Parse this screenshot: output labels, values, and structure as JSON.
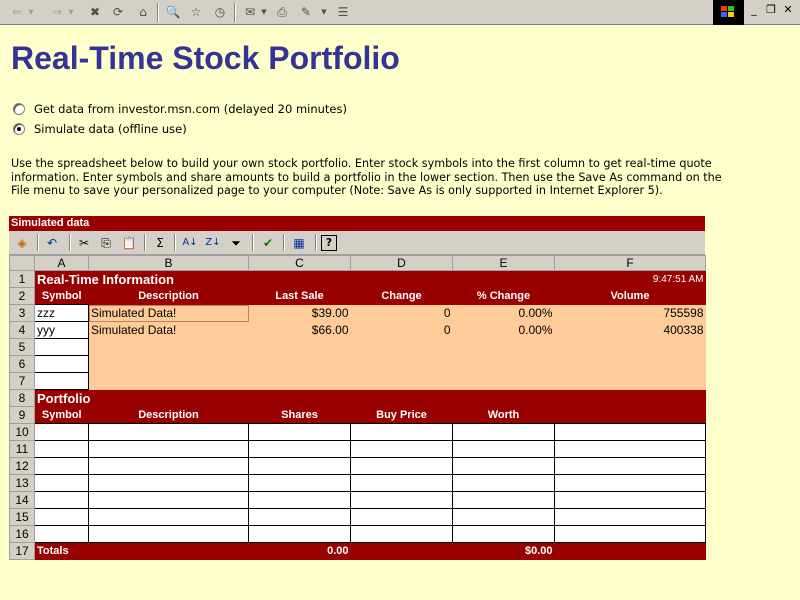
{
  "page": {
    "title": "Real-Time Stock Portfolio",
    "options": [
      {
        "label": "Get data from investor.msn.com (delayed 20 minutes)",
        "checked": false
      },
      {
        "label": "Simulate data (offline use)",
        "checked": true
      }
    ],
    "intro": "Use the spreadsheet below to build your own stock portfolio. Enter stock symbols into the first column to get real-time quote information. Enter symbols and share amounts to build a portfolio in the lower section. Then use the Save As command on the File menu to save your personalized page to your computer (Note: Save As is only supported in Internet Explorer 5)."
  },
  "browser_toolbar": {
    "icons": [
      "back-icon",
      "back-dropdown-icon",
      "forward-icon",
      "forward-dropdown-icon",
      "stop-icon",
      "refresh-icon",
      "home-icon",
      "search-icon",
      "favorites-icon",
      "history-icon",
      "mail-icon",
      "print-icon",
      "edit-icon",
      "discuss-icon",
      "messenger-icon"
    ],
    "glyphs": {
      "back": "⇐",
      "forward": "⇒",
      "dropdown": "▼",
      "stop": "✖",
      "refresh": "⟳",
      "home": "⌂",
      "search": "🔍",
      "favorites": "☆",
      "history": "◷",
      "mail": "✉",
      "print": "⎙",
      "edit": "✎",
      "discuss": "☰",
      "minimize": "_",
      "restore": "❐",
      "close": "✕"
    },
    "logo_colors": [
      "#ff3300",
      "#33cc00",
      "#3366ff",
      "#ffcc00"
    ]
  },
  "sheet": {
    "title": "Simulated data",
    "toolbar_icons": [
      "office-logo-icon",
      "undo-icon",
      "cut-icon",
      "copy-icon",
      "paste-icon",
      "autosum-icon",
      "sort-ascending-icon",
      "sort-descending-icon",
      "autofilter-icon",
      "export-to-excel-icon",
      "property-toolbox-icon",
      "help-icon"
    ],
    "toolbar_glyphs": {
      "logo": "◈",
      "undo": "↶",
      "cut": "✂",
      "copy": "⎘",
      "paste": "📋",
      "autosum": "Σ",
      "sort_asc": "A↓",
      "sort_desc": "Z↓",
      "filter": "⏷",
      "export": "✔",
      "props": "▦",
      "help": "?"
    },
    "columns": [
      "A",
      "B",
      "C",
      "D",
      "E",
      "F"
    ],
    "row_numbers": [
      "1",
      "2",
      "3",
      "4",
      "5",
      "6",
      "7",
      "8",
      "9",
      "10",
      "11",
      "12",
      "13",
      "14",
      "15",
      "16",
      "17"
    ],
    "realtime": {
      "heading": "Real-Time Information",
      "time": "9:47:51 AM",
      "headers": [
        "Symbol",
        "Description",
        "Last Sale",
        "Change",
        "% Change",
        "Volume"
      ],
      "rows": [
        {
          "symbol": "zzz",
          "description": "Simulated Data!",
          "last_sale": "$39.00",
          "change": "0",
          "pct_change": "0.00%",
          "volume": "755598"
        },
        {
          "symbol": "yyy",
          "description": "Simulated Data!",
          "last_sale": "$66.00",
          "change": "0",
          "pct_change": "0.00%",
          "volume": "400338"
        }
      ]
    },
    "portfolio": {
      "heading": "Portfolio",
      "headers": [
        "Symbol",
        "Description",
        "Shares",
        "Buy Price",
        "Worth"
      ],
      "totals_label": "Totals",
      "total_shares": "0.00",
      "total_worth": "$0.00"
    },
    "colors": {
      "header_red": "#990000",
      "peach": "#ffcc99",
      "page_bg": "#ffffcc",
      "title_blue": "#333399"
    }
  }
}
